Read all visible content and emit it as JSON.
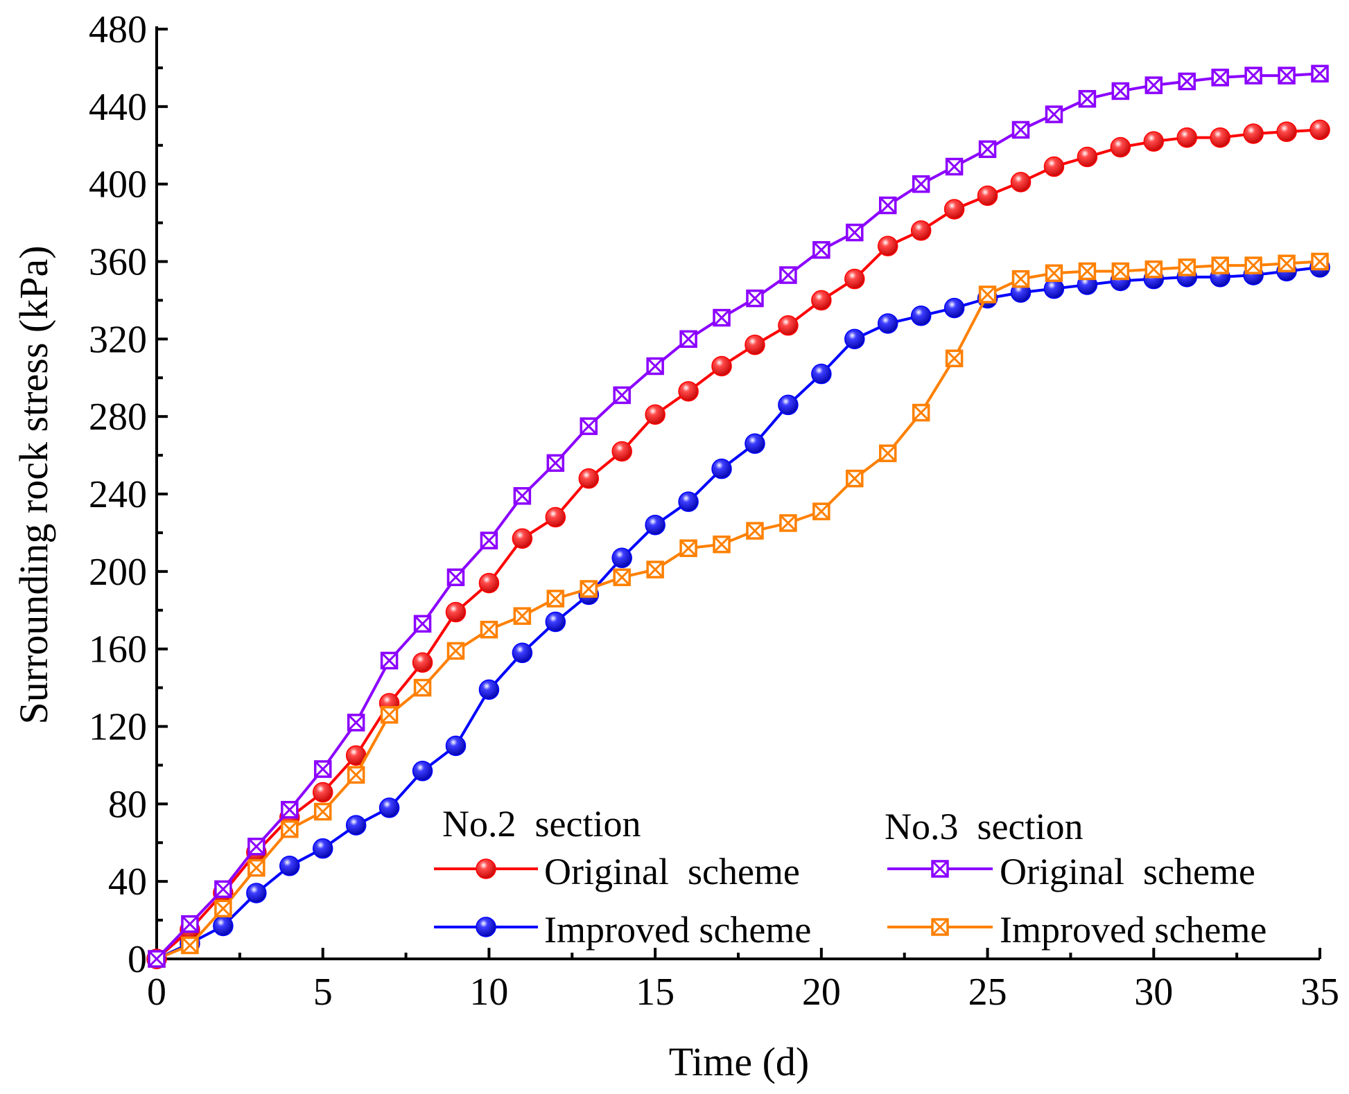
{
  "chart_data": {
    "type": "line",
    "title": "",
    "xlabel": "Time (d)",
    "ylabel": "Surrounding rock stress (kPa)",
    "xlim": [
      0,
      35
    ],
    "ylim": [
      0,
      480
    ],
    "x_ticks": [
      0,
      5,
      10,
      15,
      20,
      25,
      30,
      35
    ],
    "y_ticks": [
      0,
      40,
      80,
      120,
      160,
      200,
      240,
      280,
      320,
      360,
      400,
      440,
      480
    ],
    "grid": false,
    "legend_groups": [
      {
        "title": "No.2  section",
        "series_names": [
          "Original  scheme",
          "Improved scheme"
        ]
      },
      {
        "title": "No.3  section",
        "series_names": [
          "Original  scheme",
          "Improved scheme"
        ]
      }
    ],
    "x": [
      0,
      1,
      2,
      3,
      4,
      5,
      6,
      7,
      8,
      9,
      10,
      11,
      12,
      13,
      14,
      15,
      16,
      17,
      18,
      19,
      20,
      21,
      22,
      23,
      24,
      25,
      26,
      27,
      28,
      29,
      30,
      31,
      32,
      33,
      34,
      35
    ],
    "series": [
      {
        "group": "No.2  section",
        "name": "Original  scheme",
        "color": "#ff0000",
        "marker": "sphere",
        "values": [
          0,
          15,
          34,
          55,
          73,
          86,
          105,
          132,
          153,
          179,
          194,
          217,
          228,
          248,
          262,
          281,
          293,
          306,
          317,
          327,
          340,
          351,
          368,
          376,
          387,
          394,
          401,
          409,
          414,
          419,
          422,
          424,
          424,
          426,
          427,
          428
        ]
      },
      {
        "group": "No.2  section",
        "name": "Improved scheme",
        "color": "#0000ff",
        "marker": "sphere",
        "values": [
          0,
          8,
          17,
          34,
          48,
          57,
          69,
          78,
          97,
          110,
          139,
          158,
          174,
          188,
          207,
          224,
          236,
          253,
          266,
          286,
          302,
          320,
          328,
          332,
          336,
          341,
          344,
          346,
          348,
          350,
          351,
          352,
          352,
          353,
          355,
          357
        ]
      },
      {
        "group": "No.3  section",
        "name": "Original  scheme",
        "color": "#8b00ff",
        "marker": "boxed-x",
        "values": [
          0,
          18,
          36,
          58,
          77,
          98,
          122,
          154,
          173,
          197,
          216,
          239,
          256,
          275,
          291,
          306,
          320,
          331,
          341,
          353,
          366,
          375,
          389,
          400,
          409,
          418,
          428,
          436,
          444,
          448,
          451,
          453,
          455,
          456,
          456,
          457
        ]
      },
      {
        "group": "No.3  section",
        "name": "Improved scheme",
        "color": "#ff8000",
        "marker": "boxed-x",
        "values": [
          0,
          7,
          26,
          47,
          67,
          76,
          95,
          126,
          140,
          159,
          170,
          177,
          186,
          191,
          197,
          201,
          212,
          214,
          221,
          225,
          231,
          248,
          261,
          282,
          310,
          343,
          351,
          354,
          355,
          355,
          356,
          357,
          358,
          358,
          359,
          360
        ]
      }
    ]
  }
}
